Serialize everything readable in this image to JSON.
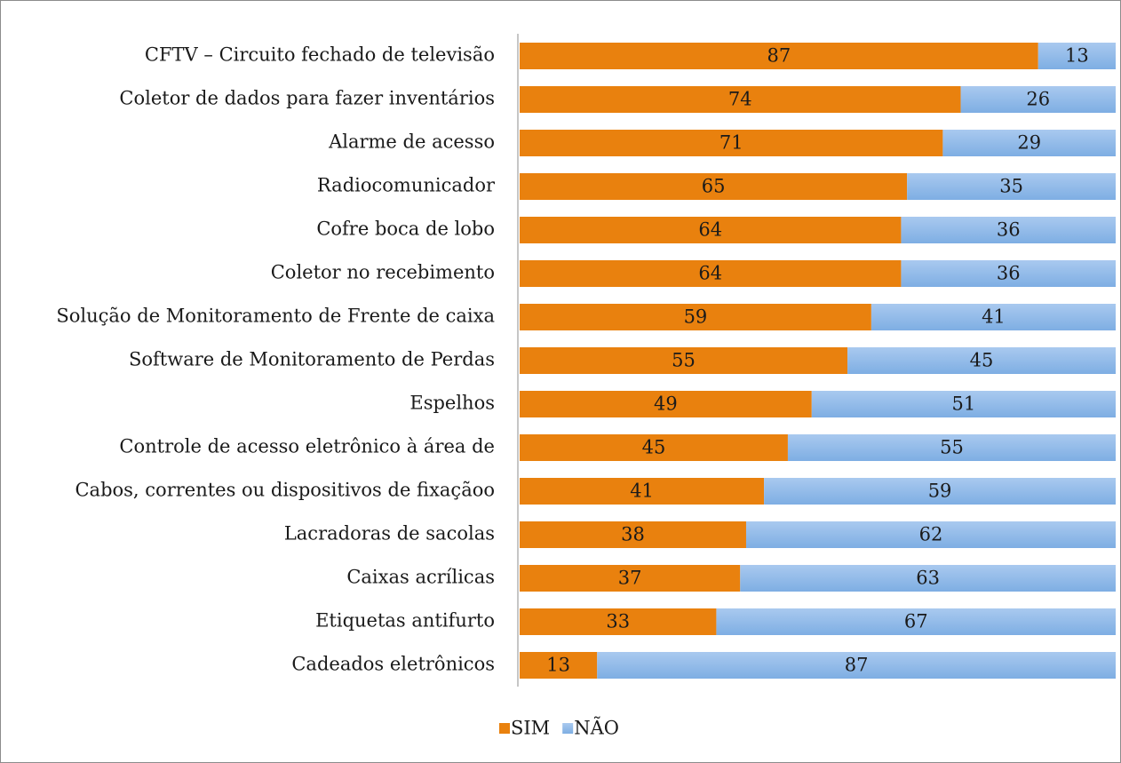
{
  "chart_data": {
    "type": "stacked_barh",
    "categories": [
      "CFTV – Circuito fechado de televisão",
      "Coletor de dados para fazer inventários",
      "Alarme de acesso",
      "Radiocomunicador",
      "Cofre boca de lobo",
      "Coletor no recebimento",
      "Solução de Monitoramento de Frente de caixa",
      "Software de Monitoramento de Perdas",
      "Espelhos",
      "Controle de acesso eletrônico à área de",
      "Cabos, correntes ou dispositivos de fixaçãoo",
      "Lacradoras de sacolas",
      "Caixas acrílicas",
      "Etiquetas antifurto",
      "Cadeados eletrônicos"
    ],
    "series": [
      {
        "name": "SIM",
        "color": "#e9810e",
        "values": [
          87,
          74,
          71,
          65,
          64,
          64,
          59,
          55,
          49,
          45,
          41,
          38,
          37,
          33,
          13
        ]
      },
      {
        "name": "NÃO",
        "color": "#8fb7e6",
        "values": [
          13,
          26,
          29,
          35,
          36,
          36,
          41,
          45,
          51,
          55,
          59,
          62,
          63,
          67,
          87
        ]
      }
    ],
    "xlim": [
      0,
      100
    ],
    "legend": "bottom"
  }
}
